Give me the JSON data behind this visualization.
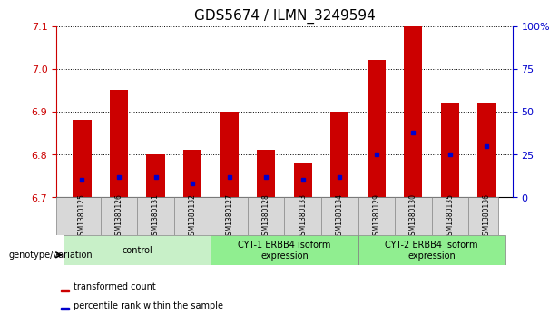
{
  "title": "GDS5674 / ILMN_3249594",
  "samples": [
    "GSM1380125",
    "GSM1380126",
    "GSM1380131",
    "GSM1380132",
    "GSM1380127",
    "GSM1380128",
    "GSM1380133",
    "GSM1380134",
    "GSM1380129",
    "GSM1380130",
    "GSM1380135",
    "GSM1380136"
  ],
  "transformed_count": [
    6.88,
    6.95,
    6.8,
    6.81,
    6.9,
    6.81,
    6.78,
    6.9,
    7.02,
    7.1,
    6.92,
    6.92
  ],
  "percentile_rank": [
    10,
    12,
    12,
    8,
    12,
    12,
    10,
    12,
    25,
    38,
    25,
    30
  ],
  "ymin": 6.7,
  "ymax": 7.1,
  "yticks": [
    6.7,
    6.8,
    6.9,
    7.0,
    7.1
  ],
  "right_yticks": [
    0,
    25,
    50,
    75,
    100
  ],
  "right_ylabels": [
    "0",
    "25",
    "50",
    "75",
    "100%"
  ],
  "bar_color": "#cc0000",
  "dot_color": "#0000cc",
  "background_color": "#ffffff",
  "groups": [
    {
      "label": "control",
      "start": 0,
      "end": 4,
      "color": "#c8f0c8"
    },
    {
      "label": "CYT-1 ERBB4 isoform\nexpression",
      "start": 4,
      "end": 8,
      "color": "#90ee90"
    },
    {
      "label": "CYT-2 ERBB4 isoform\nexpression",
      "start": 8,
      "end": 12,
      "color": "#90ee90"
    }
  ],
  "legend_items": [
    {
      "label": "transformed count",
      "color": "#cc0000"
    },
    {
      "label": "percentile rank within the sample",
      "color": "#0000cc"
    }
  ],
  "genotype_label": "genotype/variation",
  "bar_width": 0.5,
  "title_fontsize": 11,
  "tick_fontsize": 8,
  "left_tick_color": "#cc0000",
  "right_tick_color": "#0000cc",
  "sample_name_color": "#c8c8c8"
}
